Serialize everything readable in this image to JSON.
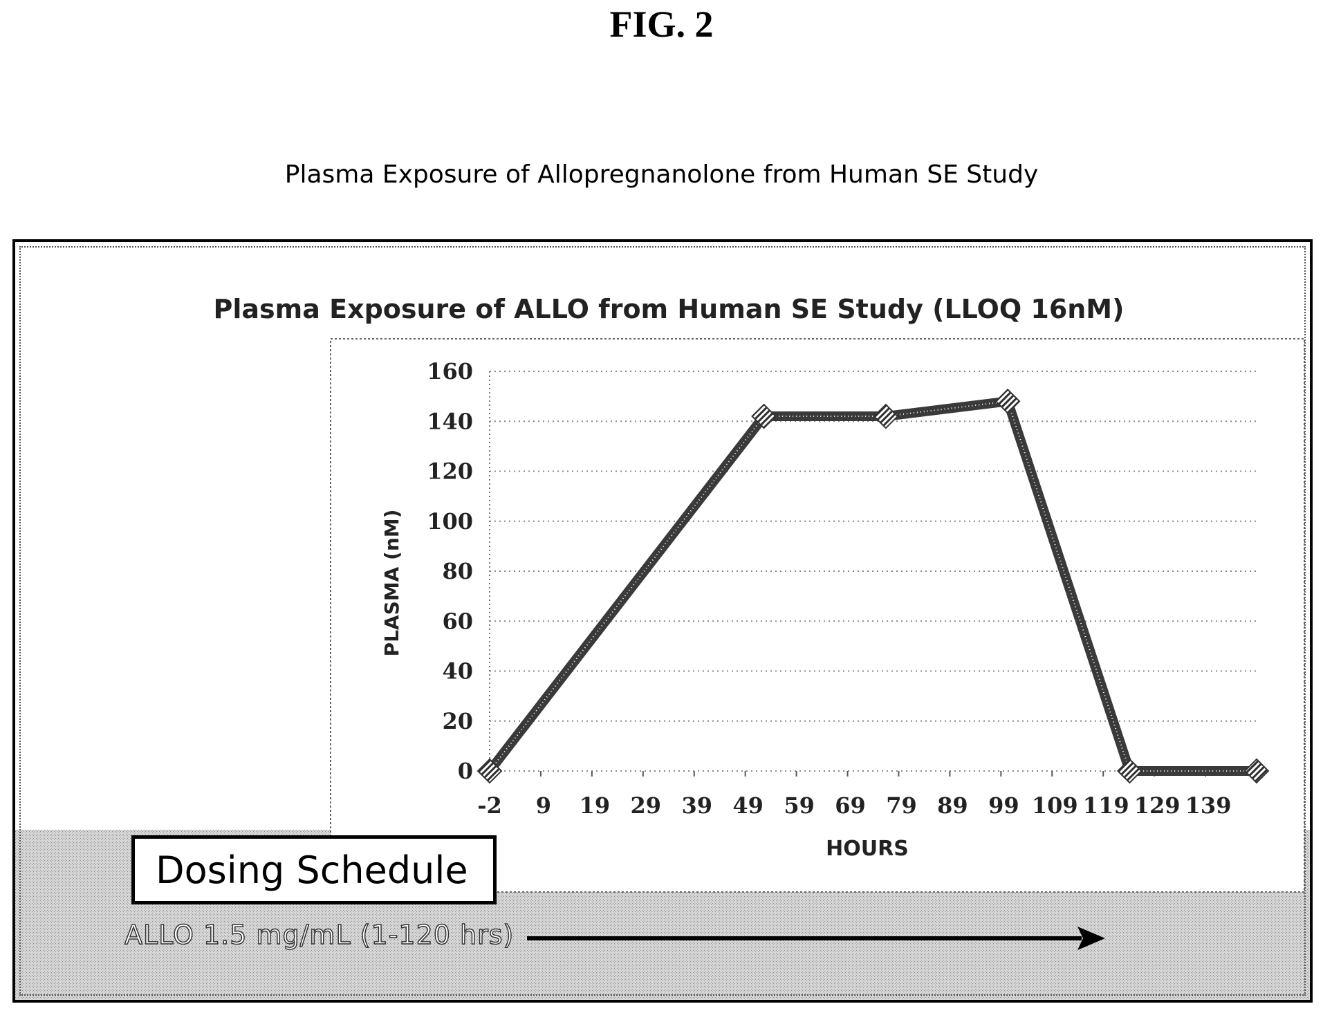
{
  "figure_title": "FIG. 2",
  "caption": "Plasma Exposure of Allopregnanolone from Human SE Study",
  "dosing": {
    "box_label": "Dosing Schedule",
    "regimen": "ALLO 1.5 mg/mL (1-120 hrs)"
  },
  "chart_data": {
    "type": "line",
    "title": "Plasma Exposure of ALLO from Human SE Study (LLOQ 16nM)",
    "xlabel": "HOURS",
    "ylabel": "PLASMA (nM)",
    "x_ticks": [
      "-2",
      "9",
      "19",
      "29",
      "39",
      "49",
      "59",
      "69",
      "79",
      "89",
      "99",
      "109",
      "119",
      "129",
      "139"
    ],
    "y_ticks": [
      "0",
      "20",
      "40",
      "60",
      "80",
      "100",
      "120",
      "140",
      "160"
    ],
    "ylim": [
      0,
      160
    ],
    "xlim": [
      -2,
      149
    ],
    "grid": true,
    "series": [
      {
        "x": [
          -2,
          52,
          76,
          100,
          124,
          149
        ],
        "y": [
          0,
          142,
          142,
          148,
          0,
          0
        ]
      }
    ],
    "colors": {
      "line": "#3a3a3a",
      "grid": "#888888",
      "background": "#ffffff",
      "lower_band": "#c8c8c8"
    }
  }
}
